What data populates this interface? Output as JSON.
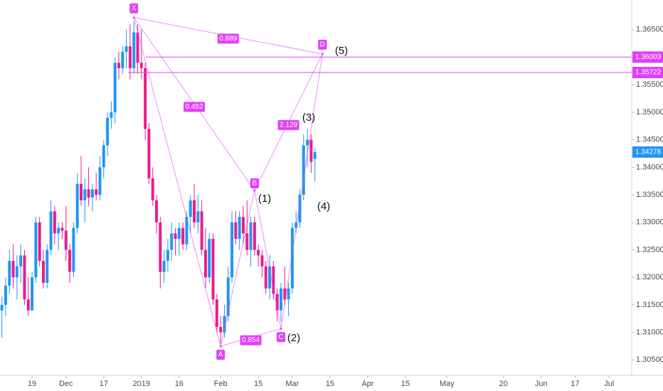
{
  "chart_data": {
    "type": "candlestick",
    "xlim": [
      -0.5,
      167
    ],
    "ylim": [
      1.3022,
      1.3704
    ],
    "xticks": [
      {
        "value": 8,
        "label": "19"
      },
      {
        "value": 17,
        "label": "Dec"
      },
      {
        "value": 27,
        "label": "17"
      },
      {
        "value": 37,
        "label": "2019"
      },
      {
        "value": 47,
        "label": "16"
      },
      {
        "value": 58,
        "label": "Feb"
      },
      {
        "value": 68,
        "label": "15"
      },
      {
        "value": 77,
        "label": "Mar"
      },
      {
        "value": 87,
        "label": "15"
      },
      {
        "value": 97,
        "label": "Apr"
      },
      {
        "value": 107,
        "label": "15"
      },
      {
        "value": 118,
        "label": "May"
      },
      {
        "value": 133,
        "label": "20"
      },
      {
        "value": 143,
        "label": "Jun"
      },
      {
        "value": 152,
        "label": "17"
      },
      {
        "value": 161,
        "label": "Jul"
      }
    ],
    "yticks": [
      {
        "value": 1.365,
        "label": "1.36500"
      },
      {
        "value": 1.355,
        "label": "1.35500"
      },
      {
        "value": 1.35,
        "label": "1.35000"
      },
      {
        "value": 1.345,
        "label": "1.34500"
      },
      {
        "value": 1.34,
        "label": "1.34000"
      },
      {
        "value": 1.335,
        "label": "1.33500"
      },
      {
        "value": 1.33,
        "label": "1.33000"
      },
      {
        "value": 1.325,
        "label": "1.32500"
      },
      {
        "value": 1.32,
        "label": "1.32000"
      },
      {
        "value": 1.315,
        "label": "1.31500"
      },
      {
        "value": 1.31,
        "label": "1.31000"
      },
      {
        "value": 1.305,
        "label": "1.30500"
      }
    ],
    "up_color": "#2196f3",
    "down_color": "#e91e8c",
    "open": [
      1.314,
      1.315,
      1.3185,
      1.323,
      1.32,
      1.322,
      1.324,
      1.316,
      1.314,
      1.32,
      1.33,
      1.323,
      1.319,
      1.325,
      1.332,
      1.328,
      1.329,
      1.3285,
      1.325,
      1.321,
      1.329,
      1.337,
      1.334,
      1.336,
      1.3345,
      1.336,
      1.335,
      1.34,
      1.344,
      1.349,
      1.35,
      1.359,
      1.358,
      1.361,
      1.362,
      1.358,
      1.3645,
      1.359,
      1.358,
      1.347,
      1.338,
      1.334,
      1.33,
      1.321,
      1.323,
      1.325,
      1.328,
      1.327,
      1.329,
      1.326,
      1.331,
      1.334,
      1.33,
      1.332,
      1.325,
      1.32,
      1.327,
      1.316,
      1.311,
      1.31,
      1.313,
      1.32,
      1.33,
      1.327,
      1.331,
      1.328,
      1.325,
      1.33,
      1.325,
      1.324,
      1.322,
      1.318,
      1.322,
      1.317,
      1.314,
      1.318,
      1.316,
      1.318,
      1.329,
      1.33,
      1.335,
      1.344,
      1.345,
      1.3415
    ],
    "high": [
      1.3165,
      1.32,
      1.325,
      1.326,
      1.324,
      1.326,
      1.325,
      1.32,
      1.321,
      1.331,
      1.331,
      1.325,
      1.326,
      1.334,
      1.333,
      1.33,
      1.33,
      1.333,
      1.326,
      1.33,
      1.339,
      1.342,
      1.338,
      1.34,
      1.337,
      1.339,
      1.342,
      1.345,
      1.35,
      1.352,
      1.36,
      1.361,
      1.362,
      1.365,
      1.366,
      1.3665,
      1.366,
      1.365,
      1.359,
      1.348,
      1.34,
      1.335,
      1.331,
      1.325,
      1.327,
      1.33,
      1.329,
      1.33,
      1.33,
      1.332,
      1.335,
      1.337,
      1.335,
      1.334,
      1.329,
      1.328,
      1.328,
      1.317,
      1.313,
      1.315,
      1.322,
      1.332,
      1.332,
      1.332,
      1.333,
      1.334,
      1.331,
      1.331,
      1.326,
      1.325,
      1.323,
      1.324,
      1.323,
      1.318,
      1.319,
      1.322,
      1.319,
      1.33,
      1.332,
      1.336,
      1.346,
      1.347,
      1.346,
      1.3435
    ],
    "low": [
      1.309,
      1.313,
      1.317,
      1.318,
      1.316,
      1.319,
      1.315,
      1.313,
      1.314,
      1.319,
      1.322,
      1.318,
      1.318,
      1.324,
      1.326,
      1.325,
      1.327,
      1.323,
      1.319,
      1.32,
      1.328,
      1.333,
      1.33,
      1.333,
      1.332,
      1.334,
      1.334,
      1.338,
      1.342,
      1.347,
      1.348,
      1.356,
      1.357,
      1.358,
      1.356,
      1.357,
      1.357,
      1.356,
      1.345,
      1.337,
      1.333,
      1.328,
      1.318,
      1.319,
      1.321,
      1.323,
      1.324,
      1.324,
      1.325,
      1.325,
      1.328,
      1.329,
      1.328,
      1.324,
      1.318,
      1.319,
      1.315,
      1.31,
      1.308,
      1.309,
      1.312,
      1.319,
      1.326,
      1.325,
      1.326,
      1.324,
      1.322,
      1.324,
      1.322,
      1.32,
      1.317,
      1.316,
      1.316,
      1.312,
      1.312,
      1.315,
      1.313,
      1.317,
      1.328,
      1.329,
      1.334,
      1.34,
      1.339,
      1.3375
    ],
    "close": [
      1.315,
      1.3185,
      1.323,
      1.32,
      1.322,
      1.324,
      1.316,
      1.314,
      1.32,
      1.33,
      1.323,
      1.319,
      1.325,
      1.332,
      1.328,
      1.329,
      1.3285,
      1.325,
      1.321,
      1.329,
      1.337,
      1.334,
      1.336,
      1.3345,
      1.336,
      1.335,
      1.34,
      1.344,
      1.349,
      1.35,
      1.359,
      1.358,
      1.361,
      1.362,
      1.358,
      1.3645,
      1.359,
      1.358,
      1.347,
      1.338,
      1.334,
      1.33,
      1.321,
      1.323,
      1.325,
      1.328,
      1.327,
      1.329,
      1.326,
      1.331,
      1.334,
      1.33,
      1.332,
      1.325,
      1.32,
      1.327,
      1.316,
      1.311,
      1.31,
      1.313,
      1.32,
      1.33,
      1.327,
      1.331,
      1.328,
      1.325,
      1.33,
      1.325,
      1.324,
      1.322,
      1.318,
      1.322,
      1.317,
      1.314,
      1.318,
      1.316,
      1.318,
      1.329,
      1.33,
      1.335,
      1.344,
      1.345,
      1.341,
      1.34278
    ],
    "last_price": 1.34278,
    "levels": [
      1.36003,
      1.35722
    ],
    "pattern_color": "#e040fb",
    "pattern_points": [
      {
        "label": "X",
        "x": 35,
        "y": 1.3672
      },
      {
        "label": "A",
        "x": 58,
        "y": 1.3075
      },
      {
        "label": "B",
        "x": 67,
        "y": 1.3358
      },
      {
        "label": "C",
        "x": 74,
        "y": 1.3107
      },
      {
        "label": "D",
        "x": 85,
        "y": 1.3606
      }
    ],
    "ratios": [
      "0.889",
      "0.452",
      "2.129",
      "0.854"
    ],
    "wave_labels": [
      "(1)",
      "(2)",
      "(3)",
      "(4)",
      "(5)"
    ]
  }
}
